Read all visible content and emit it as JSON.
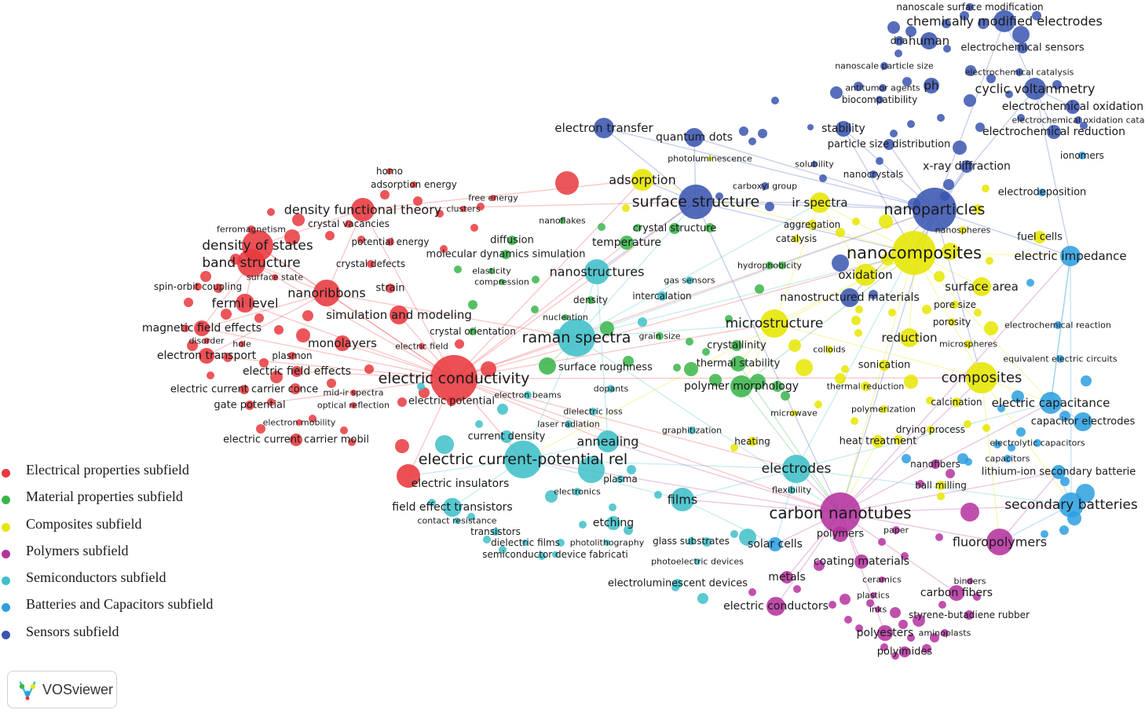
{
  "clusters": {
    "electrical": {
      "color": "#e8383d",
      "legend": "Electrical properties subfield"
    },
    "material": {
      "color": "#3ab54a",
      "legend": "Material properties subfield"
    },
    "composites": {
      "color": "#e6e600",
      "legend": "Composites subfield"
    },
    "polymers": {
      "color": "#b4329e",
      "legend": "Polymers subfield"
    },
    "semiconductors": {
      "color": "#3fbfc8",
      "legend": "Semiconductors subfield"
    },
    "batteries": {
      "color": "#2d9fe0",
      "legend": "Batteries and Capacitors subfield"
    },
    "sensors": {
      "color": "#3a55b0",
      "legend": "Sensors subfield"
    }
  },
  "legend_order": [
    "electrical",
    "material",
    "composites",
    "polymers",
    "semiconductors",
    "batteries",
    "sensors"
  ],
  "brand": {
    "name": "VOSviewer",
    "logo_icon": "vosviewer-logo-icon"
  },
  "nodes": [
    {
      "label": "electric conductivity",
      "cluster": "electrical",
      "size": 5
    },
    {
      "label": "density of states",
      "cluster": "electrical",
      "size": 4
    },
    {
      "label": "band structure",
      "cluster": "electrical",
      "size": 4
    },
    {
      "label": "density functional theory",
      "cluster": "electrical",
      "size": 4
    },
    {
      "label": "nanoribbons",
      "cluster": "electrical",
      "size": 4
    },
    {
      "label": "fermi level",
      "cluster": "electrical",
      "size": 3
    },
    {
      "label": "monolayers",
      "cluster": "electrical",
      "size": 3
    },
    {
      "label": "simulation and modeling",
      "cluster": "electrical",
      "size": 3
    },
    {
      "label": "magnetic field effects",
      "cluster": "electrical",
      "size": 3
    },
    {
      "label": "electron transport",
      "cluster": "electrical",
      "size": 3
    },
    {
      "label": "electric field effects",
      "cluster": "electrical",
      "size": 2
    },
    {
      "label": "electric current carrier conce",
      "cluster": "electrical",
      "size": 2
    },
    {
      "label": "gate potential",
      "cluster": "electrical",
      "size": 2
    },
    {
      "label": "electric current carrier mobil",
      "cluster": "electrical",
      "size": 2
    },
    {
      "label": "electric potential",
      "cluster": "electrical",
      "size": 2
    },
    {
      "label": "electric insulators",
      "cluster": "electrical",
      "size": 3
    },
    {
      "label": "homo",
      "cluster": "electrical",
      "size": 1
    },
    {
      "label": "adsorption energy",
      "cluster": "electrical",
      "size": 1
    },
    {
      "label": "free energy",
      "cluster": "electrical",
      "size": 1
    },
    {
      "label": "clusters",
      "cluster": "electrical",
      "size": 1
    },
    {
      "label": "ferromagnetism",
      "cluster": "electrical",
      "size": 1
    },
    {
      "label": "crystal vacancies",
      "cluster": "electrical",
      "size": 1
    },
    {
      "label": "potential energy",
      "cluster": "electrical",
      "size": 1
    },
    {
      "label": "crystal defects",
      "cluster": "electrical",
      "size": 1
    },
    {
      "label": "surface state",
      "cluster": "electrical",
      "size": 1
    },
    {
      "label": "spin-orbit coupling",
      "cluster": "electrical",
      "size": 1
    },
    {
      "label": "strain",
      "cluster": "electrical",
      "size": 1
    },
    {
      "label": "disorder",
      "cluster": "electrical",
      "size": 1
    },
    {
      "label": "hole",
      "cluster": "electrical",
      "size": 1
    },
    {
      "label": "plasmon",
      "cluster": "electrical",
      "size": 1
    },
    {
      "label": "electric field",
      "cluster": "electrical",
      "size": 1
    },
    {
      "label": "mid-ir spectra",
      "cluster": "electrical",
      "size": 1
    },
    {
      "label": "optical reflection",
      "cluster": "electrical",
      "size": 1
    },
    {
      "label": "electron mobility",
      "cluster": "electrical",
      "size": 1
    },
    {
      "label": "diffusion",
      "cluster": "material",
      "size": 2
    },
    {
      "label": "molecular dynamics simulation",
      "cluster": "material",
      "size": 2
    },
    {
      "label": "elasticity",
      "cluster": "material",
      "size": 1
    },
    {
      "label": "compression",
      "cluster": "material",
      "size": 1
    },
    {
      "label": "temperature",
      "cluster": "material",
      "size": 2
    },
    {
      "label": "crystal structure",
      "cluster": "material",
      "size": 2
    },
    {
      "label": "density",
      "cluster": "material",
      "size": 1
    },
    {
      "label": "nucleation",
      "cluster": "material",
      "size": 1
    },
    {
      "label": "crystal orientation",
      "cluster": "material",
      "size": 1
    },
    {
      "label": "grain size",
      "cluster": "material",
      "size": 1
    },
    {
      "label": "surface roughness",
      "cluster": "material",
      "size": 2
    },
    {
      "label": "crystallinity",
      "cluster": "material",
      "size": 2
    },
    {
      "label": "thermal stability",
      "cluster": "material",
      "size": 2
    },
    {
      "label": "polymer morphology",
      "cluster": "material",
      "size": 3
    },
    {
      "label": "hydrophobicity",
      "cluster": "material",
      "size": 1
    },
    {
      "label": "nanoflakes",
      "cluster": "material",
      "size": 1
    },
    {
      "label": "adsorption",
      "cluster": "composites",
      "size": 3
    },
    {
      "label": "ir spectra",
      "cluster": "composites",
      "size": 3
    },
    {
      "label": "aggregation",
      "cluster": "composites",
      "size": 1
    },
    {
      "label": "catalysis",
      "cluster": "composites",
      "size": 1
    },
    {
      "label": "nanocomposites",
      "cluster": "composites",
      "size": 5
    },
    {
      "label": "oxidation",
      "cluster": "composites",
      "size": 3
    },
    {
      "label": "microstructure",
      "cluster": "composites",
      "size": 4
    },
    {
      "label": "reduction",
      "cluster": "composites",
      "size": 3
    },
    {
      "label": "surface area",
      "cluster": "composites",
      "size": 3
    },
    {
      "label": "pore size",
      "cluster": "composites",
      "size": 1
    },
    {
      "label": "porosity",
      "cluster": "composites",
      "size": 1
    },
    {
      "label": "microspheres",
      "cluster": "composites",
      "size": 1
    },
    {
      "label": "composites",
      "cluster": "composites",
      "size": 4
    },
    {
      "label": "colloids",
      "cluster": "composites",
      "size": 1
    },
    {
      "label": "sonication",
      "cluster": "composites",
      "size": 2
    },
    {
      "label": "thermal reduction",
      "cluster": "composites",
      "size": 1
    },
    {
      "label": "calcination",
      "cluster": "composites",
      "size": 1
    },
    {
      "label": "polymerization",
      "cluster": "composites",
      "size": 1
    },
    {
      "label": "drying process",
      "cluster": "composites",
      "size": 1
    },
    {
      "label": "heat treatment",
      "cluster": "composites",
      "size": 2
    },
    {
      "label": "heating",
      "cluster": "composites",
      "size": 1
    },
    {
      "label": "microwave",
      "cluster": "composites",
      "size": 1
    },
    {
      "label": "ball milling",
      "cluster": "composites",
      "size": 1
    },
    {
      "label": "fuel cells",
      "cluster": "composites",
      "size": 1
    },
    {
      "label": "nanospheres",
      "cluster": "composites",
      "size": 1
    },
    {
      "label": "photoluminescence",
      "cluster": "composites",
      "size": 1
    },
    {
      "label": "carbon nanotubes",
      "cluster": "polymers",
      "size": 5
    },
    {
      "label": "polymers",
      "cluster": "polymers",
      "size": 2
    },
    {
      "label": "paper",
      "cluster": "polymers",
      "size": 1
    },
    {
      "label": "fluoropolymers",
      "cluster": "polymers",
      "size": 3
    },
    {
      "label": "coating materials",
      "cluster": "polymers",
      "size": 2
    },
    {
      "label": "metals",
      "cluster": "polymers",
      "size": 2
    },
    {
      "label": "ceramics",
      "cluster": "polymers",
      "size": 1
    },
    {
      "label": "plastics",
      "cluster": "polymers",
      "size": 1
    },
    {
      "label": "inks",
      "cluster": "polymers",
      "size": 1
    },
    {
      "label": "binders",
      "cluster": "polymers",
      "size": 1
    },
    {
      "label": "carbon fibers",
      "cluster": "polymers",
      "size": 2
    },
    {
      "label": "styrene-butadiene rubber",
      "cluster": "polymers",
      "size": 1
    },
    {
      "label": "polyesters",
      "cluster": "polymers",
      "size": 2
    },
    {
      "label": "aminoplasts",
      "cluster": "polymers",
      "size": 1
    },
    {
      "label": "polyimides",
      "cluster": "polymers",
      "size": 1
    },
    {
      "label": "electric conductors",
      "cluster": "polymers",
      "size": 2
    },
    {
      "label": "nanofibers",
      "cluster": "polymers",
      "size": 1
    },
    {
      "label": "raman spectra",
      "cluster": "semiconductors",
      "size": 5
    },
    {
      "label": "nanostructures",
      "cluster": "semiconductors",
      "size": 3
    },
    {
      "label": "electric current-potential rel",
      "cluster": "semiconductors",
      "size": 5
    },
    {
      "label": "annealing",
      "cluster": "semiconductors",
      "size": 3
    },
    {
      "label": "current density",
      "cluster": "semiconductors",
      "size": 2
    },
    {
      "label": "field effect transistors",
      "cluster": "semiconductors",
      "size": 3
    },
    {
      "label": "contact resistance",
      "cluster": "semiconductors",
      "size": 1
    },
    {
      "label": "transistors",
      "cluster": "semiconductors",
      "size": 1
    },
    {
      "label": "dielectric films",
      "cluster": "semiconductors",
      "size": 1
    },
    {
      "label": "semiconductor device fabricati",
      "cluster": "semiconductors",
      "size": 1
    },
    {
      "label": "electronics",
      "cluster": "semiconductors",
      "size": 1
    },
    {
      "label": "etching",
      "cluster": "semiconductors",
      "size": 2
    },
    {
      "label": "photolithography",
      "cluster": "semiconductors",
      "size": 1
    },
    {
      "label": "plasma",
      "cluster": "semiconductors",
      "size": 1
    },
    {
      "label": "films",
      "cluster": "semiconductors",
      "size": 3
    },
    {
      "label": "glass substrates",
      "cluster": "semiconductors",
      "size": 1
    },
    {
      "label": "photoelectric devices",
      "cluster": "semiconductors",
      "size": 1
    },
    {
      "label": "electroluminescent devices",
      "cluster": "semiconductors",
      "size": 1
    },
    {
      "label": "electrodes",
      "cluster": "semiconductors",
      "size": 3
    },
    {
      "label": "flexibility",
      "cluster": "semiconductors",
      "size": 1
    },
    {
      "label": "solar cells",
      "cluster": "batteries",
      "size": 2
    },
    {
      "label": "dielectric loss",
      "cluster": "semiconductors",
      "size": 1
    },
    {
      "label": "laser radiation",
      "cluster": "semiconductors",
      "size": 1
    },
    {
      "label": "dopants",
      "cluster": "semiconductors",
      "size": 1
    },
    {
      "label": "electron beams",
      "cluster": "semiconductors",
      "size": 1
    },
    {
      "label": "graphitization",
      "cluster": "semiconductors",
      "size": 1
    },
    {
      "label": "intercalation",
      "cluster": "semiconductors",
      "size": 1
    },
    {
      "label": "gas sensors",
      "cluster": "semiconductors",
      "size": 1
    },
    {
      "label": "electric impedance",
      "cluster": "batteries",
      "size": 3
    },
    {
      "label": "electrochemical reaction",
      "cluster": "batteries",
      "size": 1
    },
    {
      "label": "equivalent electric circuits",
      "cluster": "batteries",
      "size": 1
    },
    {
      "label": "electric capacitance",
      "cluster": "batteries",
      "size": 3
    },
    {
      "label": "capacitor electrodes",
      "cluster": "batteries",
      "size": 2
    },
    {
      "label": "electrolytic capacitors",
      "cluster": "batteries",
      "size": 1
    },
    {
      "label": "capacitors",
      "cluster": "batteries",
      "size": 1
    },
    {
      "label": "lithium-ion secondary batterie",
      "cluster": "batteries",
      "size": 2
    },
    {
      "label": "secondary batteries",
      "cluster": "batteries",
      "size": 3
    },
    {
      "label": "electrodeposition",
      "cluster": "batteries",
      "size": 1
    },
    {
      "label": "ionomers",
      "cluster": "batteries",
      "size": 1
    },
    {
      "label": "nanoparticles",
      "cluster": "sensors",
      "size": 5
    },
    {
      "label": "surface structure",
      "cluster": "sensors",
      "size": 4
    },
    {
      "label": "electron transfer",
      "cluster": "sensors",
      "size": 3
    },
    {
      "label": "quantum dots",
      "cluster": "sensors",
      "size": 3
    },
    {
      "label": "stability",
      "cluster": "sensors",
      "size": 2
    },
    {
      "label": "particle size distribution",
      "cluster": "sensors",
      "size": 2
    },
    {
      "label": "x-ray diffraction",
      "cluster": "sensors",
      "size": 2
    },
    {
      "label": "nanocrystals",
      "cluster": "sensors",
      "size": 1
    },
    {
      "label": "solubility",
      "cluster": "sensors",
      "size": 1
    },
    {
      "label": "carboxyl group",
      "cluster": "sensors",
      "size": 1
    },
    {
      "label": "nanostructured materials",
      "cluster": "sensors",
      "size": 2
    },
    {
      "label": "cyclic voltammetry",
      "cluster": "sensors",
      "size": 3
    },
    {
      "label": "electrochemical oxidation",
      "cluster": "sensors",
      "size": 2
    },
    {
      "label": "electrochemical oxidation cata",
      "cluster": "sensors",
      "size": 1
    },
    {
      "label": "electrochemical reduction",
      "cluster": "sensors",
      "size": 2
    },
    {
      "label": "electrochemical catalysis",
      "cluster": "sensors",
      "size": 1
    },
    {
      "label": "ph",
      "cluster": "sensors",
      "size": 2
    },
    {
      "label": "antitumor agents",
      "cluster": "sensors",
      "size": 1
    },
    {
      "label": "biocompatibility",
      "cluster": "sensors",
      "size": 1
    },
    {
      "label": "nanoscale particle size",
      "cluster": "sensors",
      "size": 1
    },
    {
      "label": "chemically modified electrodes",
      "cluster": "sensors",
      "size": 3
    },
    {
      "label": "nanoscale surface modification",
      "cluster": "sensors",
      "size": 1
    },
    {
      "label": "human",
      "cluster": "sensors",
      "size": 2
    },
    {
      "label": "dna",
      "cluster": "sensors",
      "size": 1
    },
    {
      "label": "electrochemical sensors",
      "cluster": "sensors",
      "size": 2
    }
  ]
}
